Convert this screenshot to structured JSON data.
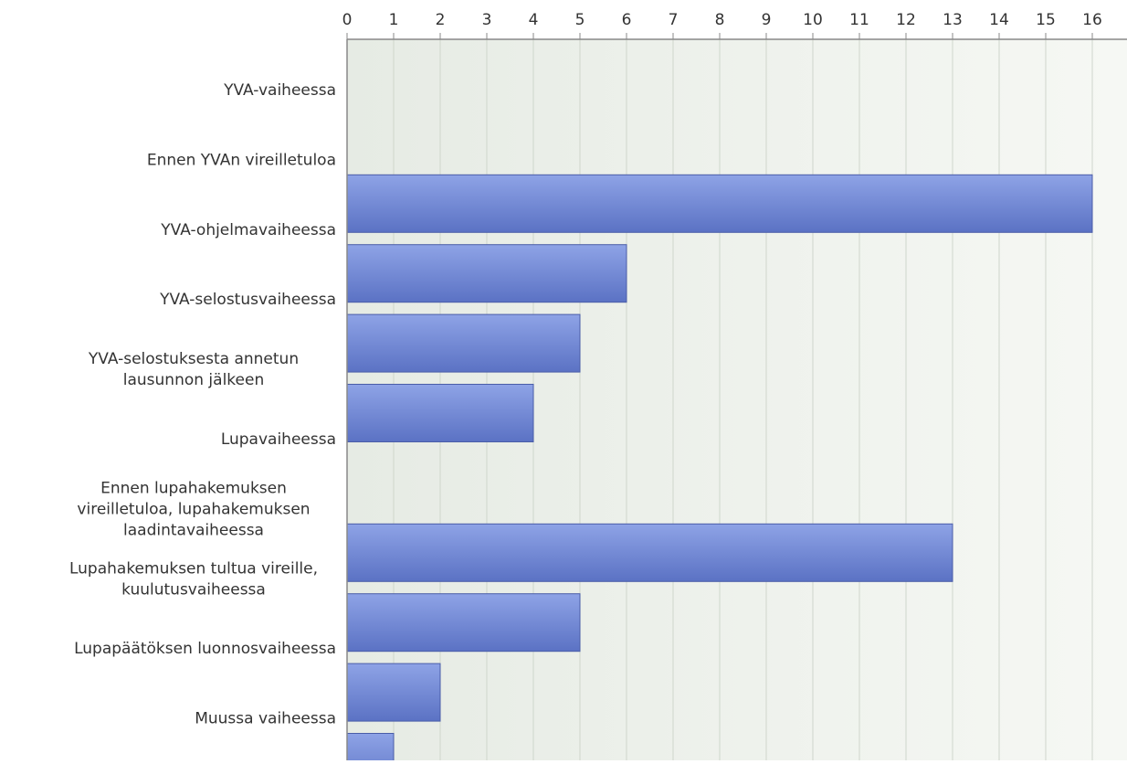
{
  "chart_data": {
    "type": "bar",
    "orientation": "horizontal",
    "title": "",
    "xlabel": "",
    "ylabel": "",
    "xlim": [
      0,
      16
    ],
    "ticks": [
      0,
      1,
      2,
      3,
      4,
      5,
      6,
      7,
      8,
      9,
      10,
      11,
      12,
      13,
      14,
      15,
      16
    ],
    "grid": true,
    "legend": "none",
    "categories": [
      [
        "YVA-vaiheessa"
      ],
      [
        "Ennen YVAn vireilletuloa"
      ],
      [
        "YVA-ohjelmavaiheessa"
      ],
      [
        "YVA-selostusvaiheessa"
      ],
      [
        "YVA-selostuksesta annetun",
        "lausunnon jälkeen"
      ],
      [
        "Lupavaiheessa"
      ],
      [
        "Ennen lupahakemuksen",
        "vireilletuloa, lupahakemuksen",
        "laadintavaiheessa"
      ],
      [
        "Lupahakemuksen tultua vireille,",
        "kuulutusvaiheessa"
      ],
      [
        "Lupapäätöksen luonnosvaiheessa"
      ],
      [
        "Muussa vaiheessa"
      ]
    ],
    "values": [
      null,
      16,
      6,
      5,
      4,
      null,
      13,
      5,
      2,
      1
    ],
    "colors": {
      "bar_top": "#8ea3e6",
      "bar_bottom": "#5b72c4",
      "bar_edge": "#4a5da8",
      "plot_bg_left": "#e6ebe4",
      "plot_bg_right": "#f6f8f4",
      "grid": "#cfd6cc",
      "axis": "#888888",
      "text": "#333333"
    }
  }
}
